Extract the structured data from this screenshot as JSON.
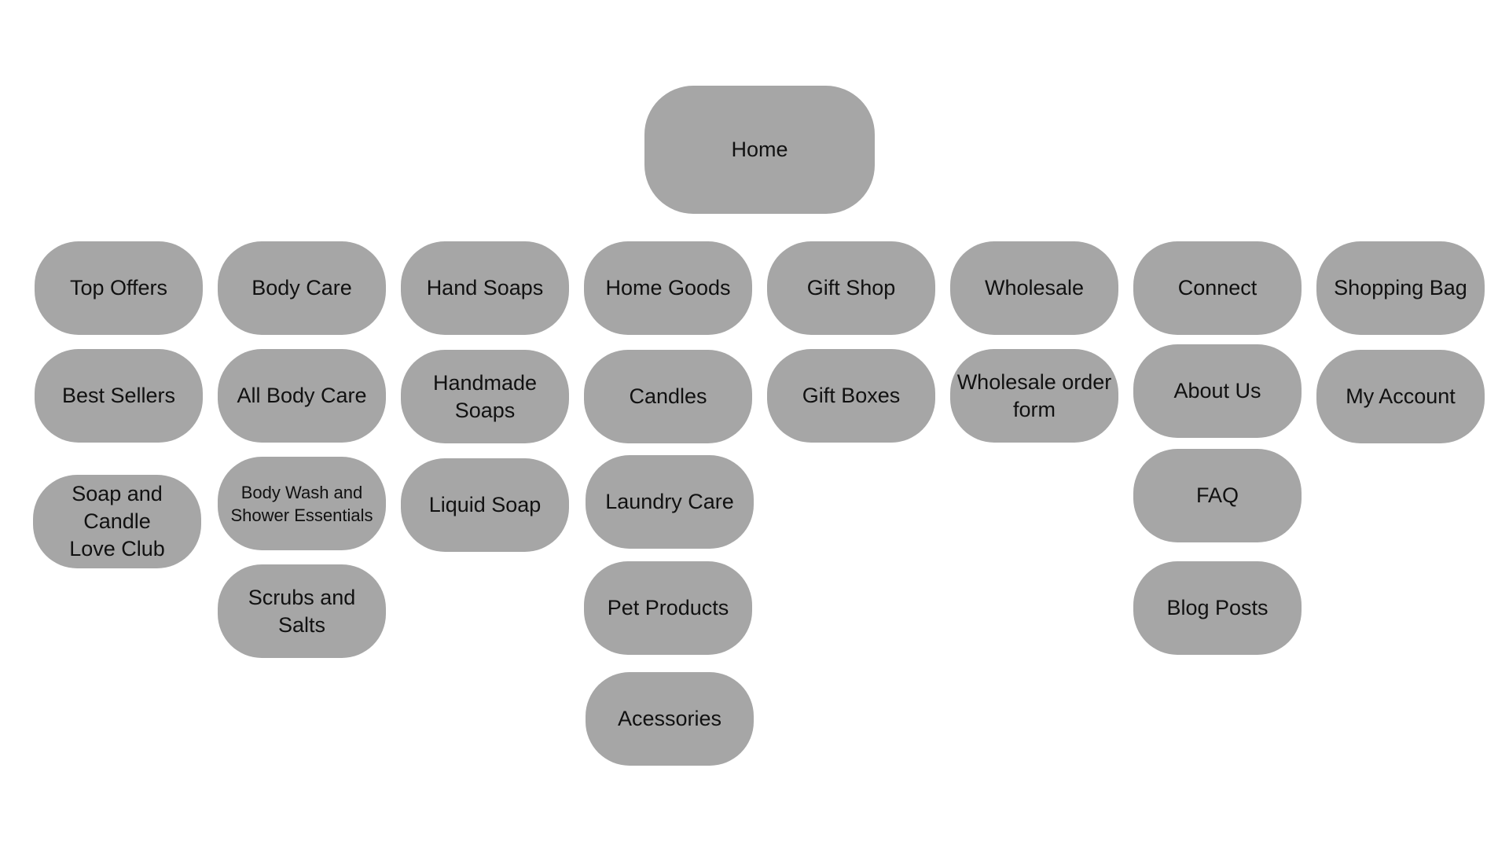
{
  "colors": {
    "node_fill": "#a6a6a6",
    "text": "#111111",
    "background": "#ffffff"
  },
  "root": {
    "label": "Home"
  },
  "columns": [
    {
      "label": "Top Offers",
      "children": [
        "Best Sellers",
        "Soap and Candle Love Club"
      ]
    },
    {
      "label": "Body Care",
      "children": [
        "All Body Care",
        "Body Wash and Shower Essentials",
        "Scrubs and Salts"
      ]
    },
    {
      "label": "Hand Soaps",
      "children": [
        "Handmade Soaps",
        "Liquid Soap"
      ]
    },
    {
      "label": "Home Goods",
      "children": [
        "Candles",
        "Laundry Care",
        "Pet Products",
        "Acessories"
      ]
    },
    {
      "label": "Gift Shop",
      "children": [
        "Gift Boxes"
      ]
    },
    {
      "label": "Wholesale",
      "children": [
        "Wholesale order form"
      ]
    },
    {
      "label": "Connect",
      "children": [
        "About Us",
        "FAQ",
        "Blog Posts"
      ]
    },
    {
      "label": "Shopping Bag",
      "children": [
        "My Account"
      ]
    }
  ]
}
